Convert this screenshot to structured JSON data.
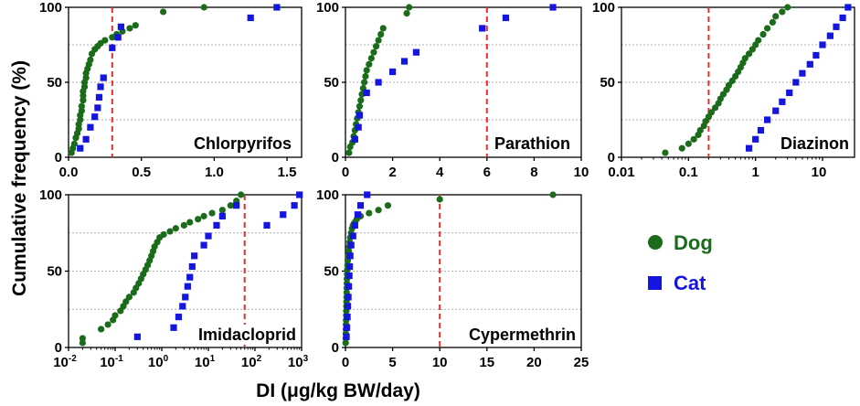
{
  "figure": {
    "ylabel": "Cumulative frequency (%)",
    "xlabel": "DI (μg/kg BW/day)"
  },
  "legend": [
    {
      "label": "Dog",
      "marker": "circle",
      "color": "#1a6b1a"
    },
    {
      "label": "Cat",
      "marker": "square",
      "color": "#1515e0"
    }
  ],
  "colors": {
    "threshold": "#e03030",
    "grid": "#999999"
  },
  "chart_data": [
    {
      "type": "scatter",
      "title": "Chlorpyrifos",
      "xscale": "linear",
      "xlim": [
        0,
        1.6
      ],
      "ylim": [
        0,
        100
      ],
      "xticks": [
        0,
        0.5,
        1,
        1.5
      ],
      "xtick_labels": [
        "0.0",
        "0.5",
        "1.0",
        "1.5"
      ],
      "yticks": [
        0,
        50,
        100
      ],
      "ytick_labels": [
        "0",
        "50",
        "100"
      ],
      "threshold": 0.3,
      "series": [
        {
          "name": "Dog",
          "x": [
            0.02,
            0.03,
            0.04,
            0.05,
            0.06,
            0.07,
            0.07,
            0.08,
            0.08,
            0.09,
            0.09,
            0.1,
            0.1,
            0.1,
            0.11,
            0.11,
            0.12,
            0.12,
            0.13,
            0.14,
            0.15,
            0.16,
            0.18,
            0.2,
            0.22,
            0.25,
            0.3,
            0.33,
            0.37,
            0.42,
            0.46,
            0.65,
            0.93
          ],
          "y": [
            3,
            6,
            9,
            13,
            16,
            19,
            22,
            25,
            28,
            31,
            34,
            38,
            41,
            44,
            47,
            50,
            53,
            56,
            59,
            62,
            65,
            69,
            72,
            74,
            76,
            78,
            80,
            82,
            84,
            86,
            88,
            97,
            100
          ]
        },
        {
          "name": "Cat",
          "x": [
            0.08,
            0.12,
            0.15,
            0.18,
            0.2,
            0.21,
            0.22,
            0.24,
            0.3,
            0.34,
            0.36,
            1.25,
            1.43
          ],
          "y": [
            6,
            12,
            20,
            27,
            33,
            40,
            47,
            53,
            73,
            80,
            87,
            93,
            100
          ]
        }
      ]
    },
    {
      "type": "scatter",
      "title": "Parathion",
      "xscale": "linear",
      "xlim": [
        0,
        10
      ],
      "ylim": [
        0,
        100
      ],
      "xticks": [
        0,
        2,
        4,
        6,
        8,
        10
      ],
      "xtick_labels": [
        "0",
        "2",
        "4",
        "6",
        "8",
        "10"
      ],
      "yticks": [
        0,
        50,
        100
      ],
      "ytick_labels": [
        "0",
        "50",
        "100"
      ],
      "threshold": 6,
      "series": [
        {
          "name": "Dog",
          "x": [
            0.15,
            0.2,
            0.3,
            0.35,
            0.4,
            0.45,
            0.5,
            0.55,
            0.6,
            0.65,
            0.7,
            0.75,
            0.8,
            0.85,
            0.9,
            1.0,
            1.1,
            1.2,
            1.3,
            1.4,
            1.5,
            1.6,
            2.6,
            2.7
          ],
          "y": [
            3,
            7,
            10,
            14,
            18,
            22,
            26,
            30,
            34,
            38,
            42,
            46,
            50,
            54,
            58,
            62,
            66,
            70,
            74,
            78,
            82,
            86,
            96,
            100
          ]
        },
        {
          "name": "Cat",
          "x": [
            0.4,
            0.55,
            0.6,
            0.9,
            1.4,
            2.0,
            2.5,
            3.0,
            5.8,
            6.8,
            8.8
          ],
          "y": [
            12,
            20,
            28,
            43,
            50,
            57,
            64,
            70,
            86,
            93,
            100
          ]
        }
      ]
    },
    {
      "type": "scatter",
      "title": "Diazinon",
      "xscale": "log",
      "xlim": [
        0.01,
        30
      ],
      "ylim": [
        0,
        100
      ],
      "xticks": [
        0.01,
        0.1,
        1,
        10
      ],
      "xtick_labels": [
        "0.01",
        "0.1",
        "1",
        "10"
      ],
      "yticks": [
        0,
        50,
        100
      ],
      "ytick_labels": [
        "0",
        "50",
        "100"
      ],
      "threshold": 0.2,
      "series": [
        {
          "name": "Dog",
          "x": [
            0.045,
            0.08,
            0.1,
            0.12,
            0.14,
            0.15,
            0.17,
            0.18,
            0.2,
            0.22,
            0.25,
            0.28,
            0.3,
            0.33,
            0.37,
            0.4,
            0.45,
            0.5,
            0.55,
            0.6,
            0.65,
            0.7,
            0.8,
            0.9,
            1.0,
            1.1,
            1.3,
            1.5,
            1.8,
            2.0,
            2.5,
            3.0
          ],
          "y": [
            3,
            6,
            9,
            12,
            15,
            18,
            21,
            24,
            27,
            30,
            33,
            36,
            39,
            42,
            45,
            48,
            51,
            54,
            57,
            60,
            63,
            66,
            69,
            72,
            75,
            78,
            82,
            86,
            90,
            94,
            97,
            100
          ]
        },
        {
          "name": "Cat",
          "x": [
            0.8,
            1.0,
            1.2,
            1.5,
            2.0,
            2.5,
            3.2,
            4.0,
            5.0,
            6.5,
            8.0,
            10,
            13,
            16,
            20,
            24
          ],
          "y": [
            6,
            12,
            18,
            25,
            31,
            37,
            43,
            50,
            56,
            62,
            68,
            75,
            81,
            87,
            93,
            100
          ]
        }
      ]
    },
    {
      "type": "scatter",
      "title": "Imidacloprid",
      "xscale": "log",
      "xlim": [
        0.01,
        1000
      ],
      "ylim": [
        0,
        100
      ],
      "xticks": [
        0.01,
        0.1,
        1,
        10,
        100,
        1000
      ],
      "xtick_labels": [
        "10-2",
        "10-1",
        "100",
        "101",
        "102",
        "103"
      ],
      "yticks": [
        0,
        50,
        100
      ],
      "ytick_labels": [
        "0",
        "50",
        "100"
      ],
      "threshold": 60,
      "series": [
        {
          "name": "Dog",
          "x": [
            0.02,
            0.02,
            0.05,
            0.07,
            0.09,
            0.1,
            0.13,
            0.15,
            0.17,
            0.2,
            0.25,
            0.28,
            0.32,
            0.36,
            0.4,
            0.45,
            0.5,
            0.55,
            0.6,
            0.65,
            0.7,
            0.8,
            0.9,
            1.1,
            1.5,
            2,
            3,
            4,
            6,
            8,
            12,
            20,
            30,
            40,
            50
          ],
          "y": [
            3,
            6,
            12,
            15,
            18,
            21,
            24,
            27,
            30,
            33,
            36,
            39,
            42,
            45,
            48,
            51,
            54,
            57,
            60,
            63,
            66,
            69,
            72,
            74,
            76,
            78,
            80,
            82,
            84,
            86,
            88,
            90,
            93,
            96,
            100
          ]
        },
        {
          "name": "Cat",
          "x": [
            0.3,
            1.8,
            2.3,
            2.8,
            3.2,
            3.6,
            4.0,
            4.5,
            5.0,
            8,
            10,
            15,
            20,
            40,
            180,
            400,
            700,
            900
          ],
          "y": [
            7,
            13,
            20,
            27,
            33,
            40,
            46,
            53,
            60,
            67,
            73,
            80,
            86,
            93,
            80,
            87,
            93,
            100
          ]
        }
      ]
    },
    {
      "type": "scatter",
      "title": "Cypermethrin",
      "xscale": "linear",
      "xlim": [
        0,
        25
      ],
      "ylim": [
        0,
        100
      ],
      "xticks": [
        0,
        5,
        10,
        15,
        20,
        25
      ],
      "xtick_labels": [
        "0",
        "5",
        "10",
        "15",
        "20",
        "25"
      ],
      "yticks": [
        0,
        50,
        100
      ],
      "ytick_labels": [
        "0",
        "50",
        "100"
      ],
      "threshold": 10,
      "series": [
        {
          "name": "Dog",
          "x": [
            0.02,
            0.03,
            0.04,
            0.05,
            0.06,
            0.07,
            0.08,
            0.09,
            0.1,
            0.11,
            0.12,
            0.13,
            0.14,
            0.15,
            0.16,
            0.18,
            0.2,
            0.22,
            0.25,
            0.3,
            0.35,
            0.4,
            0.45,
            0.5,
            0.6,
            0.7,
            0.8,
            0.9,
            1.0,
            1.2,
            1.6,
            2.5,
            3.5,
            4.5,
            10,
            22
          ],
          "y": [
            3,
            6,
            9,
            12,
            15,
            18,
            21,
            24,
            27,
            30,
            33,
            36,
            39,
            42,
            45,
            48,
            51,
            54,
            57,
            60,
            63,
            66,
            69,
            72,
            75,
            78,
            80,
            81,
            82,
            84,
            86,
            88,
            90,
            93,
            97,
            100
          ]
        },
        {
          "name": "Cat",
          "x": [
            0.1,
            0.15,
            0.2,
            0.25,
            0.3,
            0.35,
            0.4,
            0.45,
            0.5,
            0.6,
            0.8,
            1.0,
            1.3,
            1.6,
            2.3
          ],
          "y": [
            7,
            13,
            20,
            27,
            33,
            40,
            47,
            53,
            60,
            67,
            73,
            80,
            87,
            93,
            100
          ]
        }
      ]
    }
  ]
}
